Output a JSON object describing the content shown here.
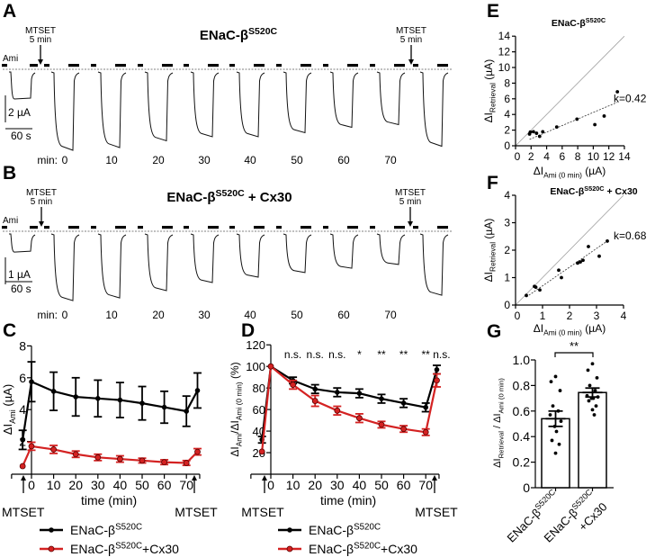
{
  "colors": {
    "black_series": "#000000",
    "red_series": "#d42222",
    "identity_line": "#9a9a9a"
  },
  "panels": {
    "A": {
      "label": "A",
      "title": [
        {
          "t": "ENaC-β"
        },
        {
          "t": "S520C",
          "sup": true
        }
      ],
      "ami_label": "Ami",
      "mtset_label": [
        "MTSET",
        "5 min"
      ],
      "scale_y": "2 µA",
      "scale_x": "60 s",
      "min_prefix": "min:",
      "time_labels": [
        "0",
        "10",
        "20",
        "30",
        "40",
        "50",
        "60",
        "70"
      ],
      "trace_amplitudes_uA": [
        2.0,
        5.8,
        5.6,
        5.1,
        4.8,
        4.8,
        4.5,
        4.1,
        3.9,
        5.5
      ]
    },
    "B": {
      "label": "B",
      "title": [
        {
          "t": "ENaC-β"
        },
        {
          "t": "S520C",
          "sup": true
        },
        {
          "t": " + Cx30"
        }
      ],
      "ami_label": "Ami",
      "mtset_label": [
        "MTSET",
        "5 min"
      ],
      "scale_y": "1 µA",
      "scale_x": "60 s",
      "min_prefix": "min:",
      "time_labels": [
        "0",
        "10",
        "20",
        "30",
        "40",
        "50",
        "60",
        "70"
      ],
      "trace_amplitudes_uA": [
        0.67,
        2.47,
        2.37,
        2.1,
        1.8,
        1.6,
        1.43,
        1.27,
        1.13,
        2.27
      ]
    }
  },
  "chart_data": [
    {
      "panel": "C",
      "type": "line",
      "x": [
        -4,
        0,
        10,
        20,
        30,
        40,
        50,
        60,
        70,
        75
      ],
      "series": [
        {
          "values": [
            2.1,
            5.75,
            5.15,
            4.8,
            4.7,
            4.6,
            4.4,
            4.15,
            3.9,
            5.2
          ],
          "sem": [
            0.6,
            1.25,
            1.2,
            1.2,
            1.15,
            1.1,
            1.05,
            1.0,
            0.95,
            1.1
          ],
          "color": "#000000"
        },
        {
          "values": [
            0.45,
            1.7,
            1.5,
            1.2,
            1.0,
            0.9,
            0.8,
            0.7,
            0.65,
            1.35
          ],
          "sem": [
            0,
            0.25,
            0.25,
            0.2,
            0.2,
            0.2,
            0.15,
            0.15,
            0.15,
            0.2
          ],
          "color": "#d42222"
        }
      ],
      "ylabel": [
        {
          "t": "ΔI"
        },
        {
          "t": "Ami",
          "sub": true
        },
        {
          "t": " (µA)"
        }
      ],
      "xlabel": "time (min)",
      "yticks": [
        "2",
        "4",
        "6",
        "8"
      ],
      "xticks": [
        "0",
        "10",
        "20",
        "30",
        "40",
        "50",
        "60",
        "70"
      ],
      "ylim": [
        0,
        8
      ],
      "xlim": [
        -9,
        76
      ],
      "annotations": [
        "MTSET",
        "MTSET"
      ],
      "legend": [
        [
          {
            "t": "ENaC-β"
          },
          {
            "t": "S520C",
            "sup": true
          }
        ],
        [
          {
            "t": "ENaC-β"
          },
          {
            "t": "S520C",
            "sup": true
          },
          {
            "t": "+Cx30"
          }
        ]
      ],
      "legend_position": "bottom",
      "grid": false
    },
    {
      "panel": "D",
      "type": "line",
      "x": [
        -4,
        0,
        10,
        20,
        30,
        40,
        50,
        60,
        70,
        75
      ],
      "series": [
        {
          "values": [
            32,
            100,
            87,
            79,
            76,
            75,
            70,
            66,
            62,
            97
          ],
          "sem": [
            3,
            0,
            3,
            4,
            4,
            4,
            4,
            4,
            4,
            4
          ],
          "color": "#000000"
        },
        {
          "values": [
            21,
            100,
            83,
            68,
            59,
            52,
            46,
            42,
            39,
            87
          ],
          "sem": [
            0,
            0,
            4,
            5,
            4,
            4,
            3,
            3,
            3,
            6
          ],
          "color": "#d42222"
        }
      ],
      "ylabel": [
        {
          "t": "ΔI"
        },
        {
          "t": "Ami",
          "sub": true
        },
        {
          "t": "/ΔI"
        },
        {
          "t": "Ami (0 min)",
          "sub": true
        },
        {
          "t": " (%)"
        }
      ],
      "xlabel": "time (min)",
      "yticks": [
        "20",
        "40",
        "60",
        "80",
        "100",
        "120"
      ],
      "xticks": [
        "0",
        "10",
        "20",
        "30",
        "40",
        "50",
        "60",
        "70"
      ],
      "ylim": [
        0,
        120
      ],
      "xlim": [
        -9,
        76
      ],
      "significance": [
        {
          "x": 10,
          "label": "n.s."
        },
        {
          "x": 20,
          "label": "n.s."
        },
        {
          "x": 30,
          "label": "n.s."
        },
        {
          "x": 40,
          "label": "*"
        },
        {
          "x": 50,
          "label": "**"
        },
        {
          "x": 60,
          "label": "**"
        },
        {
          "x": 70,
          "label": "**"
        },
        {
          "x": 75,
          "label": "n.s."
        }
      ],
      "annotations": [
        "MTSET",
        "MTSET"
      ],
      "legend": [
        [
          {
            "t": "ENaC-β"
          },
          {
            "t": "S520C",
            "sup": true
          }
        ],
        [
          {
            "t": "ENaC-β"
          },
          {
            "t": "S520C",
            "sup": true
          },
          {
            "t": "+Cx30"
          }
        ]
      ],
      "legend_position": "bottom",
      "grid": false
    },
    {
      "panel": "E",
      "type": "scatter",
      "title": [
        {
          "t": "ENaC-β"
        },
        {
          "t": "S520C",
          "sup": true
        }
      ],
      "points": [
        [
          1.8,
          1.5
        ],
        [
          1.9,
          1.75
        ],
        [
          2.3,
          1.8
        ],
        [
          2.7,
          1.6
        ],
        [
          3.1,
          1.2
        ],
        [
          3.5,
          1.8
        ],
        [
          5.3,
          2.4
        ],
        [
          7.9,
          3.4
        ],
        [
          10.2,
          2.7
        ],
        [
          11.4,
          3.8
        ],
        [
          13.1,
          6.9
        ]
      ],
      "fit": {
        "slope": 0.42,
        "intercept": 0.06,
        "x_range": [
          1.8,
          13.1
        ],
        "label": "k=0.42"
      },
      "identity_line": true,
      "xlabel": [
        {
          "t": "ΔI"
        },
        {
          "t": "Ami (0 min)",
          "sub": true
        },
        {
          "t": " (µA)"
        }
      ],
      "ylabel": [
        {
          "t": "ΔI"
        },
        {
          "t": "Retrieval",
          "sub": true
        },
        {
          "t": " (µA)"
        }
      ],
      "ticks": [
        "0",
        "2",
        "4",
        "6",
        "8",
        "10",
        "12",
        "14"
      ],
      "xlim": [
        0,
        14
      ],
      "ylim": [
        0,
        14
      ]
    },
    {
      "panel": "F",
      "type": "scatter",
      "title": [
        {
          "t": "ENaC-β"
        },
        {
          "t": "S520C",
          "sup": true
        },
        {
          "t": " + Cx30"
        }
      ],
      "points": [
        [
          0.4,
          0.35
        ],
        [
          0.7,
          0.68
        ],
        [
          0.75,
          0.65
        ],
        [
          0.9,
          0.55
        ],
        [
          1.6,
          1.27
        ],
        [
          1.7,
          1.0
        ],
        [
          2.3,
          1.53
        ],
        [
          2.4,
          1.57
        ],
        [
          2.5,
          1.63
        ],
        [
          2.7,
          2.13
        ],
        [
          3.1,
          1.78
        ],
        [
          3.4,
          2.33
        ]
      ],
      "fit": {
        "slope": 0.68,
        "intercept": 0.02,
        "x_range": [
          0.4,
          3.4
        ],
        "label": "k=0.68"
      },
      "identity_line": true,
      "xlabel": [
        {
          "t": "ΔI"
        },
        {
          "t": "Ami (0 min)",
          "sub": true
        },
        {
          "t": " (µA)"
        }
      ],
      "ylabel": [
        {
          "t": "ΔI"
        },
        {
          "t": "Retrieval",
          "sub": true
        },
        {
          "t": " (µA)"
        }
      ],
      "ticks": [
        "0",
        "1",
        "2",
        "3",
        "4"
      ],
      "xlim": [
        0,
        4
      ],
      "ylim": [
        0,
        4
      ]
    },
    {
      "panel": "G",
      "type": "bar",
      "categories": [
        [
          {
            "t": "ENaC-β"
          },
          {
            "t": "S520C",
            "sup": true
          }
        ],
        [
          {
            "t": "ENaC-β"
          },
          {
            "t": "S520C",
            "sup": true
          }
        ]
      ],
      "category_suffix": [
        "",
        "+Cx30"
      ],
      "values": [
        0.54,
        0.745
      ],
      "sem": [
        0.06,
        0.035
      ],
      "points": [
        [
          0.87,
          0.83,
          0.76,
          0.64,
          0.6,
          0.57,
          0.52,
          0.48,
          0.44,
          0.37,
          0.34,
          0.27
        ],
        [
          0.97,
          0.92,
          0.86,
          0.8,
          0.76,
          0.72,
          0.71,
          0.7,
          0.7,
          0.68,
          0.64,
          0.61,
          0.57
        ]
      ],
      "significance": "**",
      "ylabel": [
        {
          "t": "ΔI"
        },
        {
          "t": "Retrieval",
          "sub": true
        },
        {
          "t": " / ΔI"
        },
        {
          "t": "Ami (0 min)",
          "sub": true
        }
      ],
      "yticks": [
        "0",
        "0.2",
        "0.4",
        "0.6",
        "0.8",
        "1.0"
      ],
      "ylim": [
        0,
        1.0
      ]
    }
  ]
}
